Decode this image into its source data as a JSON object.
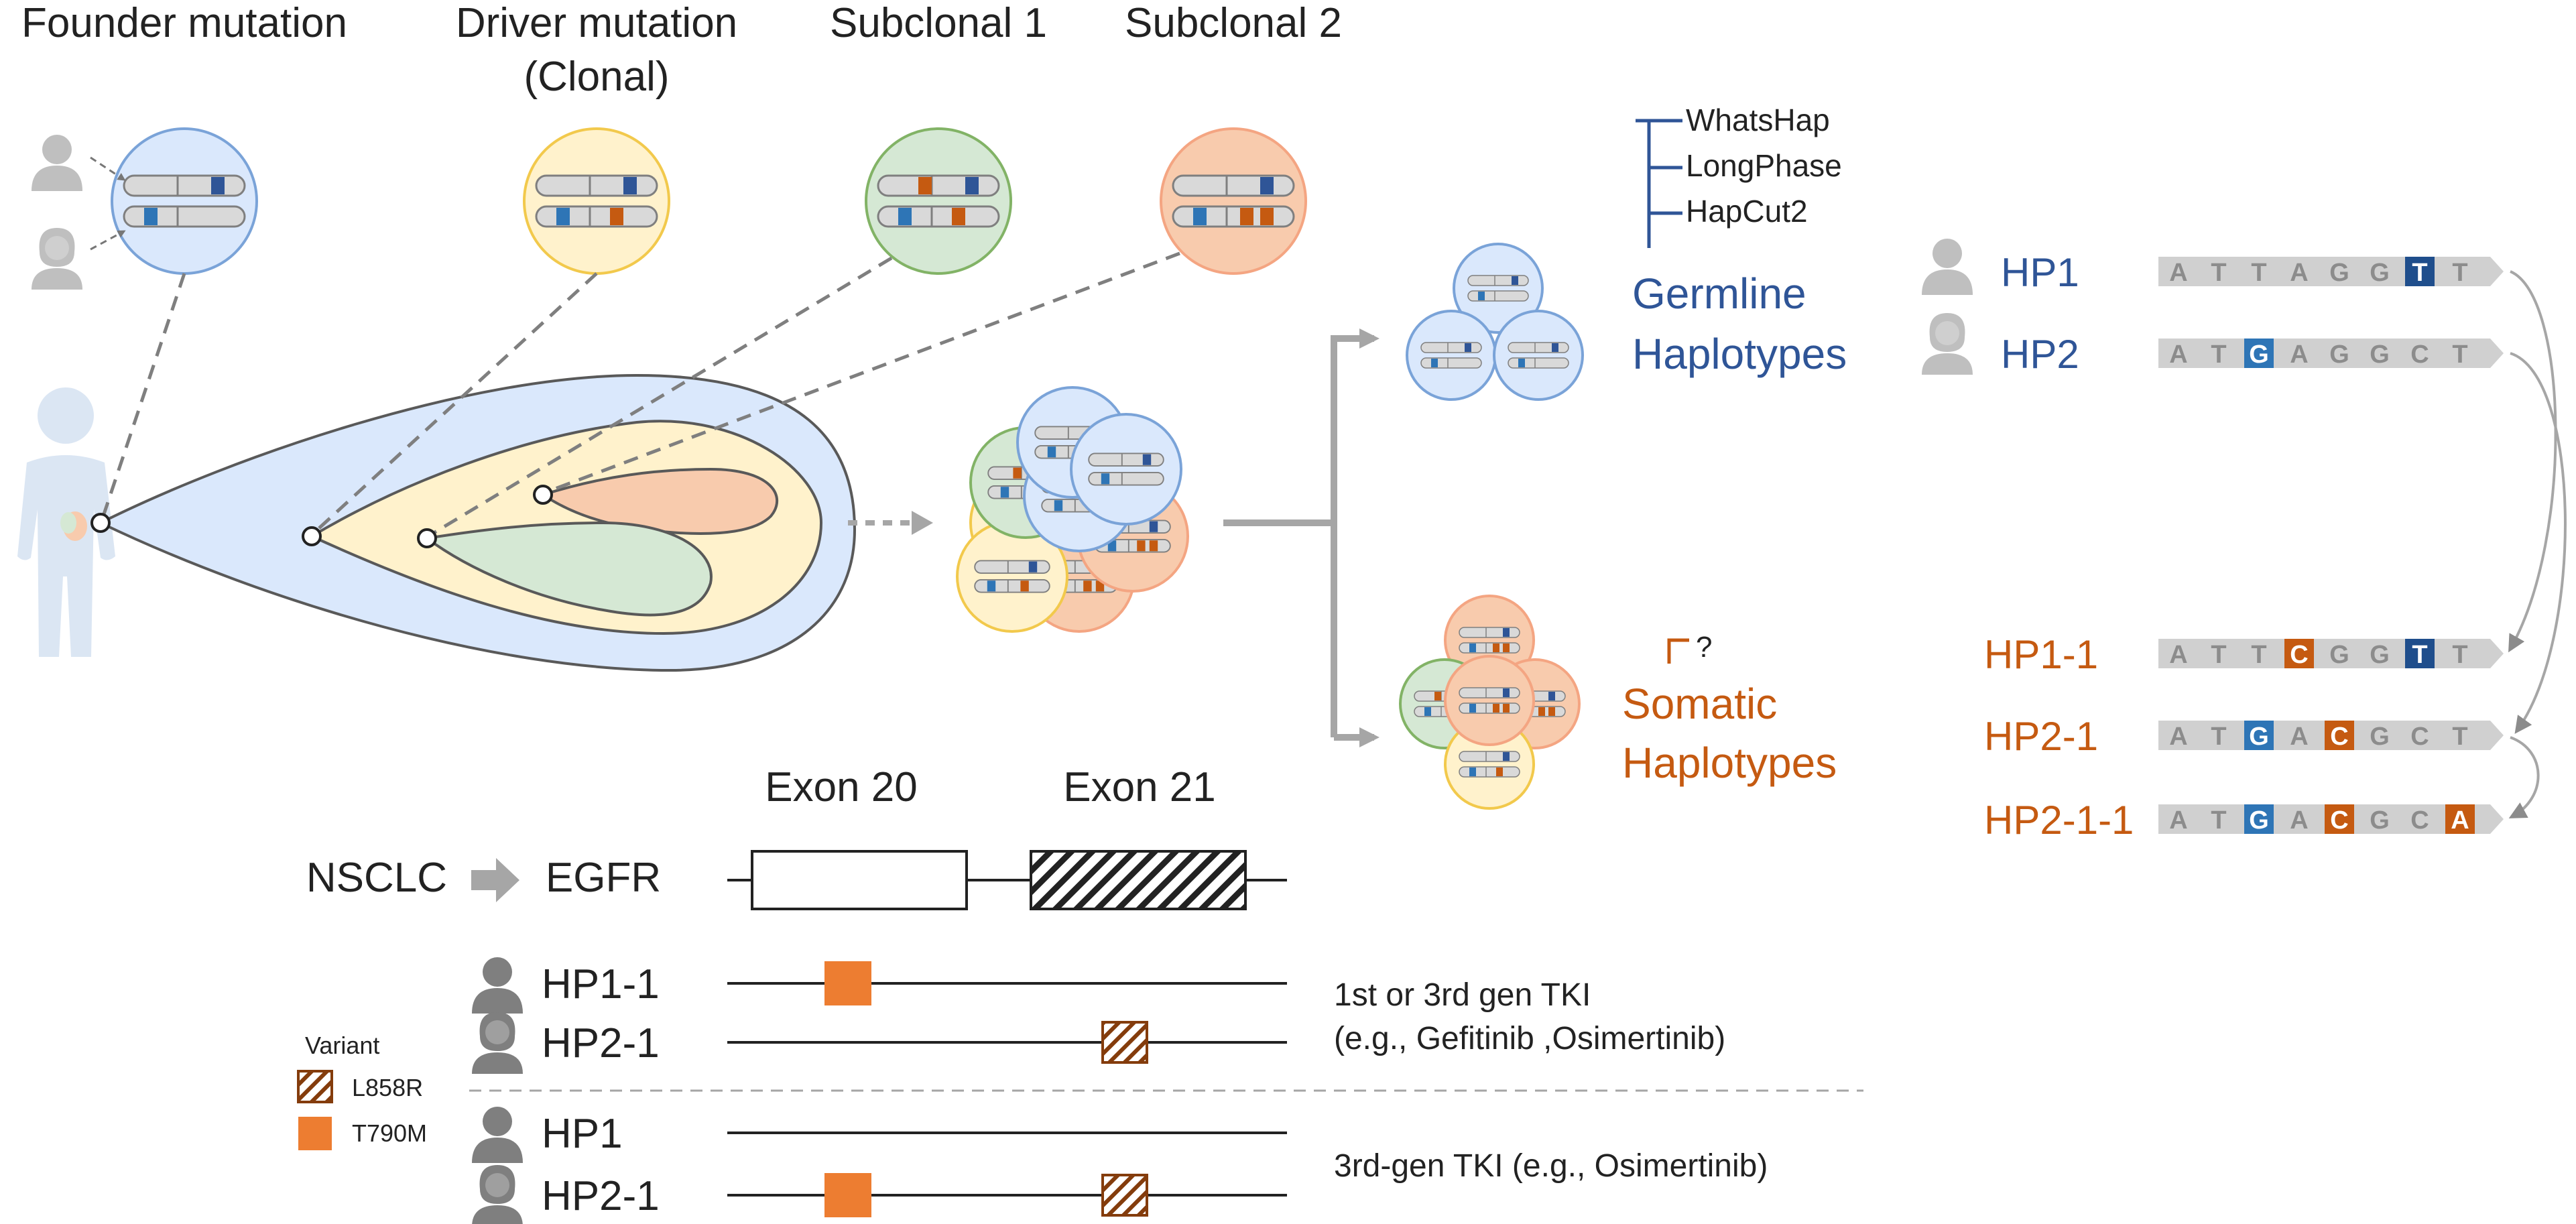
{
  "headers": {
    "founder": "Founder mutation",
    "driver_line1": "Driver mutation",
    "driver_line2": "(Clonal)",
    "sub1": "Subclonal 1",
    "sub2": "Subclonal 2"
  },
  "tools": [
    "WhatsHap",
    "LongPhase",
    "HapCut2"
  ],
  "germline": {
    "line1": "Germline",
    "line2": "Haplotypes"
  },
  "somatic": {
    "question": "?",
    "line1": "Somatic",
    "line2": "Haplotypes"
  },
  "haplotypes": [
    {
      "label": "HP1",
      "group": "germline",
      "bases": [
        "A",
        "T",
        "T",
        "A",
        "G",
        "G",
        "T",
        "T"
      ],
      "highlights": {
        "6": "#1f4e8c"
      }
    },
    {
      "label": "HP2",
      "group": "germline",
      "bases": [
        "A",
        "T",
        "G",
        "A",
        "G",
        "G",
        "C",
        "T"
      ],
      "highlights": {
        "2": "#2e75b6"
      }
    },
    {
      "label": "HP1-1",
      "group": "somatic",
      "bases": [
        "A",
        "T",
        "T",
        "C",
        "G",
        "G",
        "T",
        "T"
      ],
      "highlights": {
        "3": "#c55a11",
        "6": "#1f4e8c"
      }
    },
    {
      "label": "HP2-1",
      "group": "somatic",
      "bases": [
        "A",
        "T",
        "G",
        "A",
        "C",
        "G",
        "C",
        "T"
      ],
      "highlights": {
        "2": "#2e75b6",
        "4": "#c55a11"
      }
    },
    {
      "label": "HP2-1-1",
      "group": "somatic",
      "bases": [
        "A",
        "T",
        "G",
        "A",
        "C",
        "G",
        "C",
        "A"
      ],
      "highlights": {
        "2": "#2e75b6",
        "4": "#c55a11",
        "7": "#c55a11"
      }
    }
  ],
  "gene": {
    "disease": "NSCLC",
    "gene": "EGFR",
    "exon20": "Exon 20",
    "exon21": "Exon 21"
  },
  "legend": {
    "title": "Variant",
    "items": [
      {
        "label": "L858R",
        "style": "hatched"
      },
      {
        "label": "T790M",
        "style": "solid"
      }
    ]
  },
  "treatment_rows": [
    {
      "label": "HP1-1",
      "t790m": true,
      "l858r": false
    },
    {
      "label": "HP2-1",
      "t790m": false,
      "l858r": true
    },
    {
      "label": "HP1",
      "t790m": false,
      "l858r": false
    },
    {
      "label": "HP2-1",
      "t790m": true,
      "l858r": true
    }
  ],
  "therapy": {
    "group1_line1": "1st or 3rd gen TKI",
    "group1_line2": "(e.g., Gefitinib ,Osimertinib)",
    "group2": "3rd-gen TKI (e.g., Osimertinib)"
  },
  "colors": {
    "founder": "#dae8fc",
    "driver": "#fff2cc",
    "sub1": "#d5e8d4",
    "sub2": "#f8cbad",
    "germline_text": "#2f5597",
    "somatic_text": "#c55a11",
    "t790m": "#ed7d31",
    "l858r": "#843c0c"
  }
}
